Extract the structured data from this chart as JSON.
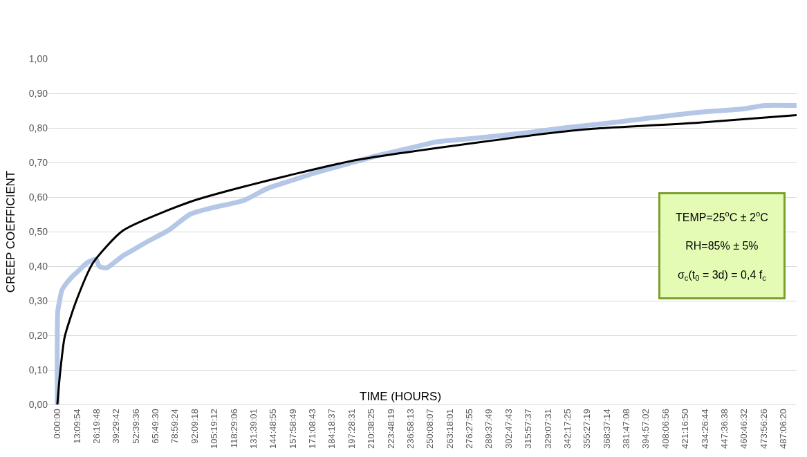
{
  "chart_data": {
    "type": "line",
    "ylabel": "CREEP COEFFICIENT",
    "xlabel": "TIME (HOURS)",
    "annotations": [
      "TEMP=25$^{o}$C ± 2$^{o}$C",
      "RH=85% ± 5%",
      "σ$_{c}$(t$_{0}$ = 3d) = 0,4 f$_{c}$"
    ],
    "series": [
      {
        "color": "#b4c7e7",
        "x": [
          0,
          0.3,
          1.5,
          3,
          6,
          10,
          15,
          20,
          26,
          28,
          33,
          38,
          44,
          50,
          60,
          75,
          89,
          105,
          125,
          141,
          155,
          173,
          198,
          215,
          235,
          255,
          280,
          313,
          340,
          372,
          400,
          430,
          460,
          475,
          496
        ],
        "values": [
          0,
          0.27,
          0.3,
          0.33,
          0.35,
          0.37,
          0.39,
          0.41,
          0.42,
          0.4,
          0.395,
          0.41,
          0.43,
          0.445,
          0.47,
          0.505,
          0.55,
          0.57,
          0.59,
          0.625,
          0.645,
          0.67,
          0.7,
          0.72,
          0.74,
          0.76,
          0.77,
          0.785,
          0.8,
          0.815,
          0.83,
          0.845,
          0.855,
          0.865,
          0.865
        ]
      },
      {
        "color": "#000000",
        "x": [
          0,
          1.7,
          4.9,
          12.7,
          24,
          44,
          89,
          125,
          198,
          260,
          352,
          430,
          496
        ],
        "values": [
          0,
          0.085,
          0.195,
          0.3,
          0.41,
          0.503,
          0.586,
          0.63,
          0.705,
          0.745,
          0.795,
          0.815,
          0.837
        ]
      }
    ],
    "xlim": [
      -6,
      496
    ],
    "xticks": [
      {
        "value": 0,
        "label": "0:00:00"
      },
      {
        "value": 13.165,
        "label": "13:09:54"
      },
      {
        "value": 26.33,
        "label": "26:19:48"
      },
      {
        "value": 39.495,
        "label": "39:29:42"
      },
      {
        "value": 52.66,
        "label": "52:39:36"
      },
      {
        "value": 65.825,
        "label": "65:49:30"
      },
      {
        "value": 78.99,
        "label": "78:59:24"
      },
      {
        "value": 92.155,
        "label": "92:09:18"
      },
      {
        "value": 105.32,
        "label": "105:19:12"
      },
      {
        "value": 118.485,
        "label": "118:29:06"
      },
      {
        "value": 131.6503,
        "label": "131:39:01"
      },
      {
        "value": 144.8153,
        "label": "144:48:55"
      },
      {
        "value": 157.9803,
        "label": "157:58:49"
      },
      {
        "value": 171.1453,
        "label": "171:08:43"
      },
      {
        "value": 184.3103,
        "label": "184:18:37"
      },
      {
        "value": 197.4753,
        "label": "197:28:31"
      },
      {
        "value": 210.6403,
        "label": "210:38:25"
      },
      {
        "value": 223.8053,
        "label": "223:48:19"
      },
      {
        "value": 236.9703,
        "label": "236:58:13"
      },
      {
        "value": 250.1353,
        "label": "250:08:07"
      },
      {
        "value": 263.3003,
        "label": "263:18:01"
      },
      {
        "value": 276.4653,
        "label": "276:27:55"
      },
      {
        "value": 289.6303,
        "label": "289:37:49"
      },
      {
        "value": 302.7953,
        "label": "302:47:43"
      },
      {
        "value": 315.9603,
        "label": "315:57:37"
      },
      {
        "value": 329.1253,
        "label": "329:07:31"
      },
      {
        "value": 342.2903,
        "label": "342:17:25"
      },
      {
        "value": 355.4553,
        "label": "355:27:19"
      },
      {
        "value": 368.6206,
        "label": "368:37:14"
      },
      {
        "value": 381.7856,
        "label": "381:47:08"
      },
      {
        "value": 394.9506,
        "label": "394:57:02"
      },
      {
        "value": 408.1156,
        "label": "408:06:56"
      },
      {
        "value": 421.2806,
        "label": "421:16:50"
      },
      {
        "value": 434.4456,
        "label": "434:26:44"
      },
      {
        "value": 447.6106,
        "label": "447:36:38"
      },
      {
        "value": 460.7756,
        "label": "460:46:32"
      },
      {
        "value": 473.9406,
        "label": "473:56:26"
      },
      {
        "value": 487.1056,
        "label": "487:06:20"
      }
    ],
    "ylim": [
      0,
      1
    ],
    "yticks": [
      {
        "value": 0,
        "label": "0,00"
      },
      {
        "value": 0.1,
        "label": "0,10"
      },
      {
        "value": 0.2,
        "label": "0,20"
      },
      {
        "value": 0.3,
        "label": "0,30"
      },
      {
        "value": 0.4,
        "label": "0,40"
      },
      {
        "value": 0.5,
        "label": "0,50"
      },
      {
        "value": 0.6,
        "label": "0,60"
      },
      {
        "value": 0.7,
        "label": "0,70"
      },
      {
        "value": 0.8,
        "label": "0,80"
      },
      {
        "value": 0.9,
        "label": "0,90"
      },
      {
        "value": 1,
        "label": "1,00"
      }
    ],
    "grid": "y",
    "line_style": "solid"
  }
}
